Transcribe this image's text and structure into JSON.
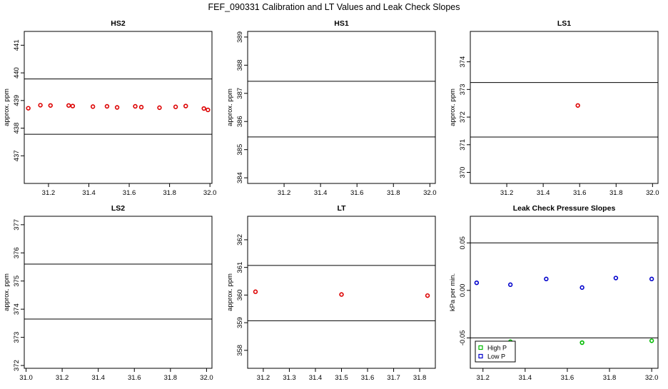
{
  "figure_title": "FEF_090331  Calibration and LT Values and Leak Check Slopes",
  "colors": {
    "cal_point": "#dd0000",
    "high_p": "#00bb00",
    "low_p": "#0000cc",
    "axis": "#000000"
  },
  "chart_data": [
    {
      "type": "scatter",
      "title": "HS2",
      "ylabel": "approx. ppm",
      "xlim": [
        31.08,
        32.01
      ],
      "ylim": [
        436.0,
        441.5
      ],
      "xticks": [
        31.2,
        31.4,
        31.6,
        31.8,
        32.0
      ],
      "xtick_labels": [
        "31.2",
        "31.4",
        "31.6",
        "31.8",
        "32.0"
      ],
      "yticks": [
        437,
        438,
        439,
        440,
        441
      ],
      "ytick_labels": [
        "437",
        "438",
        "439",
        "440",
        "441"
      ],
      "hlines": [
        439.78,
        437.78
      ],
      "series": [
        {
          "x": [
            31.1,
            31.16,
            31.21,
            31.3,
            31.32,
            31.42,
            31.49,
            31.54,
            31.63,
            31.66,
            31.75,
            31.83,
            31.88,
            31.97,
            31.99
          ],
          "y": [
            438.72,
            438.83,
            438.82,
            438.82,
            438.8,
            438.78,
            438.79,
            438.75,
            438.79,
            438.76,
            438.74,
            438.77,
            438.8,
            438.71,
            438.66
          ]
        }
      ]
    },
    {
      "type": "scatter",
      "title": "HS1",
      "ylabel": "approx. ppm",
      "xlim": [
        31.0,
        32.03
      ],
      "ylim": [
        383.8,
        389.2
      ],
      "xticks": [
        31.2,
        31.4,
        31.6,
        31.8,
        32.0
      ],
      "xtick_labels": [
        "31.2",
        "31.4",
        "31.6",
        "31.8",
        "32.0"
      ],
      "yticks": [
        384,
        385,
        386,
        387,
        388,
        389
      ],
      "ytick_labels": [
        "384",
        "385",
        "386",
        "387",
        "388",
        "389"
      ],
      "hlines": [
        387.43,
        385.45
      ],
      "series": []
    },
    {
      "type": "scatter",
      "title": "LS1",
      "ylabel": "approx. ppm",
      "xlim": [
        31.0,
        32.03
      ],
      "ylim": [
        369.6,
        375.1
      ],
      "xticks": [
        31.2,
        31.4,
        31.6,
        31.8,
        32.0
      ],
      "xtick_labels": [
        "31.2",
        "31.4",
        "31.6",
        "31.8",
        "32.0"
      ],
      "yticks": [
        370,
        371,
        372,
        373,
        374
      ],
      "ytick_labels": [
        "370",
        "371",
        "372",
        "373",
        "374"
      ],
      "hlines": [
        373.25,
        371.28
      ],
      "series": [
        {
          "x": [
            31.59
          ],
          "y": [
            372.42
          ]
        }
      ]
    },
    {
      "type": "scatter",
      "title": "LS2",
      "ylabel": "approx. ppm",
      "xlim": [
        30.99,
        32.03
      ],
      "ylim": [
        371.9,
        377.3
      ],
      "xticks": [
        31.0,
        31.2,
        31.4,
        31.6,
        31.8,
        32.0
      ],
      "xtick_labels": [
        "31.0",
        "31.2",
        "31.4",
        "31.6",
        "31.8",
        "32.0"
      ],
      "yticks": [
        372,
        373,
        374,
        375,
        376,
        377
      ],
      "ytick_labels": [
        "372",
        "373",
        "374",
        "375",
        "376",
        "377"
      ],
      "hlines": [
        375.6,
        373.65
      ],
      "series": []
    },
    {
      "type": "scatter",
      "title": "LT",
      "ylabel": "approx. ppm",
      "xlim": [
        31.14,
        31.86
      ],
      "ylim": [
        357.35,
        362.85
      ],
      "xticks": [
        31.2,
        31.3,
        31.4,
        31.5,
        31.6,
        31.7,
        31.8
      ],
      "xtick_labels": [
        "31.2",
        "31.3",
        "31.4",
        "31.5",
        "31.6",
        "31.7",
        "31.8"
      ],
      "yticks": [
        358,
        359,
        360,
        361,
        362
      ],
      "ytick_labels": [
        "358",
        "359",
        "360",
        "361",
        "362"
      ],
      "hlines": [
        361.07,
        359.07
      ],
      "series": [
        {
          "x": [
            31.17,
            31.5,
            31.83
          ],
          "y": [
            360.12,
            360.02,
            359.98
          ]
        }
      ]
    },
    {
      "type": "scatter",
      "title": "Leak Check Pressure Slopes",
      "ylabel": "kPa per min.",
      "xlim": [
        31.14,
        32.03
      ],
      "ylim": [
        -0.082,
        0.078
      ],
      "xticks": [
        31.2,
        31.4,
        31.6,
        31.8,
        32.0
      ],
      "xtick_labels": [
        "31.2",
        "31.4",
        "31.6",
        "31.8",
        "32.0"
      ],
      "yticks": [
        -0.05,
        0.0,
        0.05
      ],
      "ytick_labels": [
        "-0.05",
        "0.00",
        "0.05"
      ],
      "hlines": [
        0.05,
        -0.05
      ],
      "legend": {
        "position": "bottom-left",
        "entries": [
          "High P",
          "Low P"
        ]
      },
      "series": [
        {
          "name": "High P",
          "color_key": "high_p",
          "x": [
            31.33,
            31.67,
            32.0
          ],
          "y": [
            -0.054,
            -0.055,
            -0.053
          ]
        },
        {
          "name": "Low P",
          "color_key": "low_p",
          "x": [
            31.17,
            31.33,
            31.5,
            31.67,
            31.83,
            32.0
          ],
          "y": [
            0.008,
            0.006,
            0.012,
            0.003,
            0.013,
            0.012
          ]
        }
      ]
    }
  ]
}
